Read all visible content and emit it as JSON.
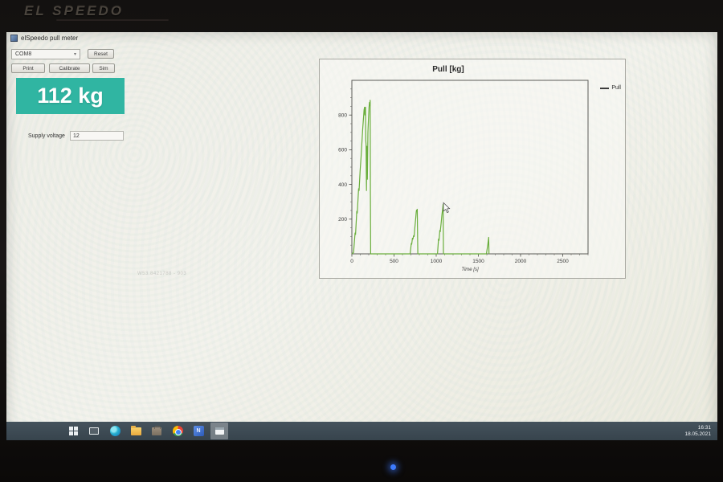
{
  "monitor": {
    "brand": "EL SPEEDO"
  },
  "window": {
    "title": "elSpeedo pull meter",
    "controls": {
      "com_port_selected": "COM8",
      "reset_label": "Reset",
      "print_label": "Print",
      "calibrate_label": "Calibrate",
      "sim_label": "Sim"
    },
    "reading_display": "112 kg",
    "supply_voltage_label": "Supply voltage",
    "supply_voltage_value": "12",
    "watermark_text": "W53.8421788 - 903"
  },
  "chart_data": {
    "type": "line",
    "title": "Pull [kg]",
    "xlabel": "Time [s]",
    "ylabel": "",
    "xlim": [
      0,
      2800
    ],
    "ylim": [
      0,
      1000
    ],
    "x_ticks": [
      0,
      500,
      1000,
      1500,
      2000,
      2500
    ],
    "y_ticks": [
      200,
      400,
      600,
      800
    ],
    "x_minor_step": 100,
    "y_minor_step": 50,
    "grid": false,
    "legend": {
      "position": "top-right",
      "entries": [
        "Pull"
      ]
    },
    "line_color": "#6aae3c",
    "series": [
      {
        "name": "Pull",
        "points": [
          [
            0,
            0
          ],
          [
            20,
            8
          ],
          [
            38,
            120
          ],
          [
            44,
            112
          ],
          [
            58,
            245
          ],
          [
            64,
            235
          ],
          [
            80,
            375
          ],
          [
            86,
            365
          ],
          [
            98,
            480
          ],
          [
            110,
            560
          ],
          [
            120,
            648
          ],
          [
            130,
            728
          ],
          [
            139,
            790
          ],
          [
            145,
            830
          ],
          [
            150,
            845
          ],
          [
            154,
            800
          ],
          [
            158,
            825
          ],
          [
            162,
            845
          ],
          [
            165,
            655
          ],
          [
            169,
            630
          ],
          [
            173,
            365
          ],
          [
            177,
            620
          ],
          [
            180,
            610
          ],
          [
            184,
            430
          ],
          [
            190,
            700
          ],
          [
            197,
            780
          ],
          [
            204,
            845
          ],
          [
            209,
            872
          ],
          [
            213,
            855
          ],
          [
            217,
            885
          ],
          [
            220,
            330
          ],
          [
            223,
            0
          ],
          [
            690,
            0
          ],
          [
            705,
            60
          ],
          [
            710,
            55
          ],
          [
            718,
            90
          ],
          [
            724,
            85
          ],
          [
            732,
            105
          ],
          [
            738,
            100
          ],
          [
            748,
            155
          ],
          [
            757,
            205
          ],
          [
            763,
            240
          ],
          [
            767,
            252
          ],
          [
            771,
            246
          ],
          [
            775,
            257
          ],
          [
            779,
            110
          ],
          [
            782,
            0
          ],
          [
            1015,
            0
          ],
          [
            1028,
            85
          ],
          [
            1033,
            78
          ],
          [
            1043,
            135
          ],
          [
            1048,
            128
          ],
          [
            1058,
            175
          ],
          [
            1068,
            225
          ],
          [
            1077,
            262
          ],
          [
            1082,
            285
          ],
          [
            1086,
            0
          ],
          [
            1595,
            0
          ],
          [
            1612,
            55
          ],
          [
            1622,
            95
          ],
          [
            1626,
            0
          ]
        ]
      }
    ],
    "cursor_at": [
      1086,
      290
    ]
  },
  "taskbar": {
    "blueapp_glyph": "N",
    "clock_time": "16:31",
    "clock_date": "18.05.2021"
  }
}
